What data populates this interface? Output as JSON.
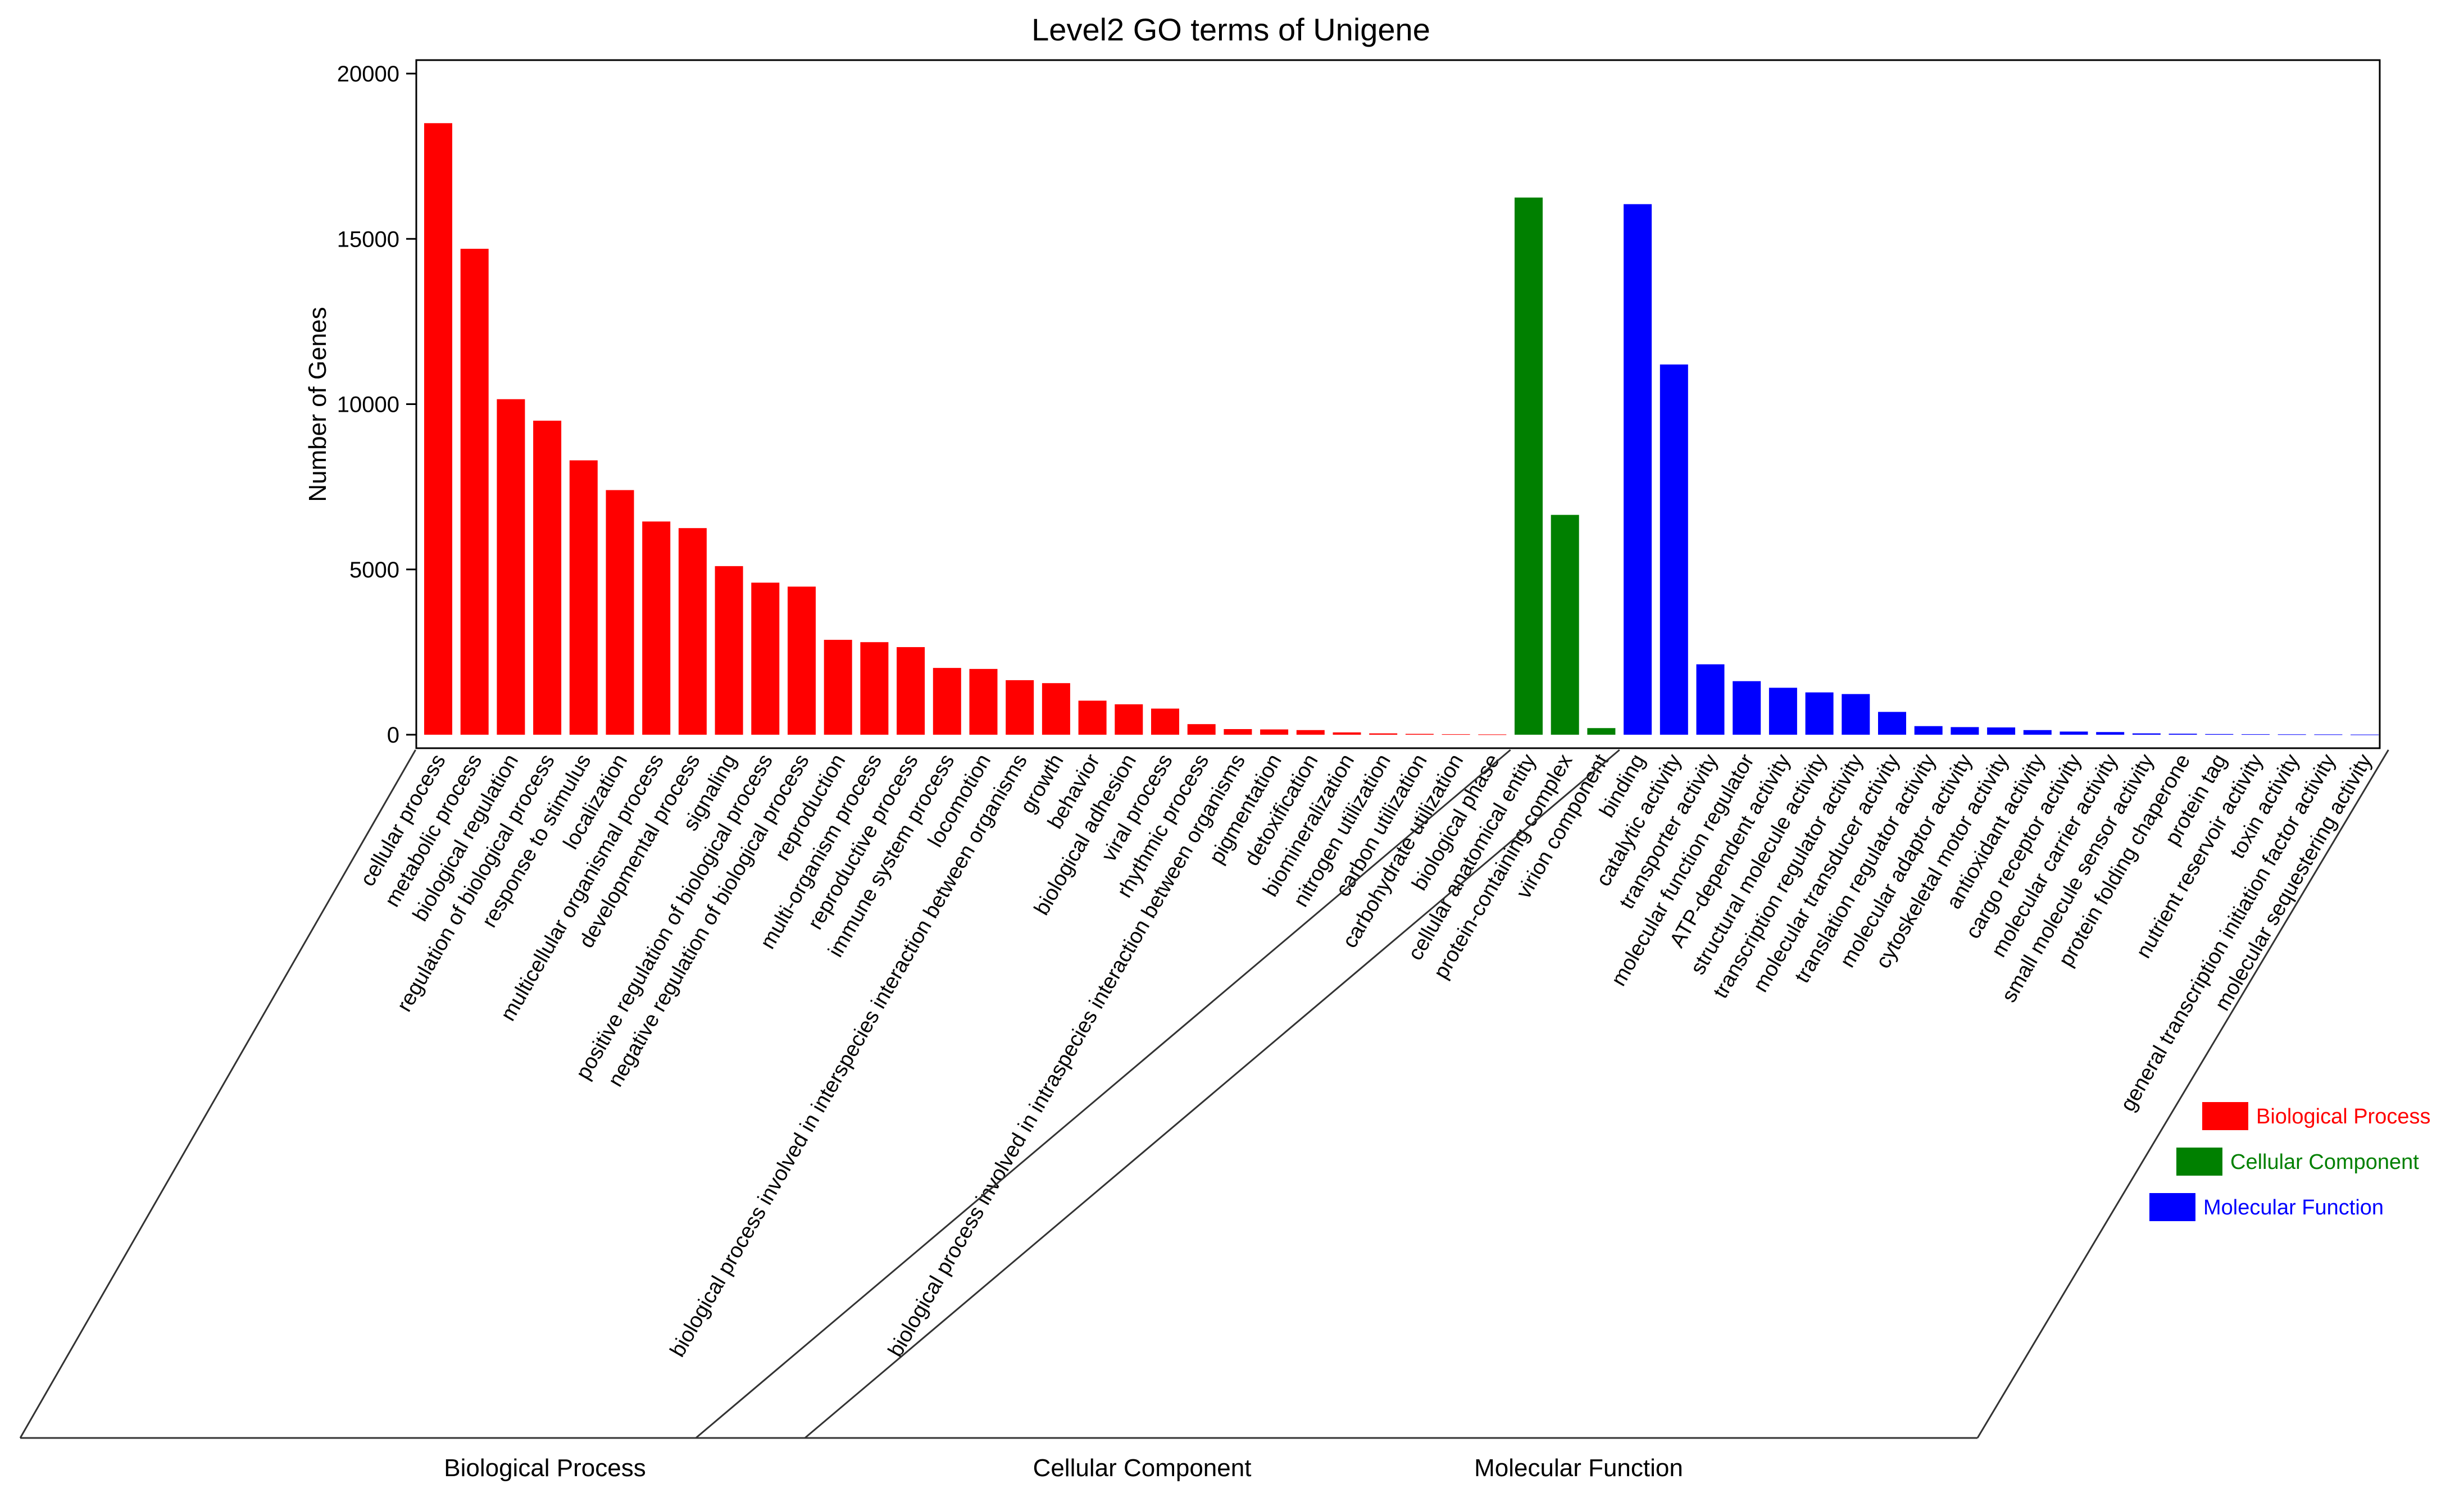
{
  "chart_data": {
    "type": "bar",
    "title": "Level2 GO terms of Unigene",
    "ylabel": "Number of Genes",
    "ylim": [
      0,
      20000
    ],
    "yticks": [
      0,
      5000,
      10000,
      15000,
      20000
    ],
    "grid": false,
    "legend_position": "right",
    "colors": {
      "Biological Process": "#ff0000",
      "Cellular Component": "#008000",
      "Molecular Function": "#0000ff"
    },
    "groups": [
      {
        "name": "Biological Process",
        "categories": [
          "cellular process",
          "metabolic process",
          "biological regulation",
          "regulation of biological process",
          "response to stimulus",
          "localization",
          "multicellular organismal process",
          "developmental process",
          "signaling",
          "positive regulation of biological process",
          "negative regulation of biological process",
          "reproduction",
          "multi-organism process",
          "reproductive process",
          "immune system process",
          "locomotion",
          "biological process involved in interspecies interaction between organisms",
          "growth",
          "behavior",
          "biological adhesion",
          "viral process",
          "rhythmic process",
          "biological process involved in intraspecies interaction between organisms",
          "pigmentation",
          "detoxification",
          "biomineralization",
          "nitrogen utilization",
          "carbon utilization",
          "carbohydrate utilization",
          "biological phase"
        ],
        "values": [
          18500,
          14700,
          10150,
          9500,
          8300,
          7400,
          6450,
          6250,
          5100,
          4600,
          4480,
          2870,
          2800,
          2650,
          2020,
          1990,
          1650,
          1560,
          1030,
          920,
          790,
          320,
          170,
          160,
          140,
          70,
          40,
          25,
          15,
          10
        ]
      },
      {
        "name": "Cellular Component",
        "categories": [
          "cellular anatomical entity",
          "protein-containing complex",
          "virion component"
        ],
        "values": [
          16250,
          6650,
          200
        ]
      },
      {
        "name": "Molecular Function",
        "categories": [
          "binding",
          "catalytic activity",
          "transporter activity",
          "molecular function regulator",
          "ATP-dependent activity",
          "structural molecule activity",
          "transcription regulator activity",
          "molecular transducer activity",
          "translation regulator activity",
          "molecular adaptor activity",
          "cytoskeletal motor activity",
          "antioxidant activity",
          "cargo receptor activity",
          "molecular carrier activity",
          "small molecule sensor activity",
          "protein folding chaperone",
          "protein tag",
          "nutrient reservoir activity",
          "toxin activity",
          "general transcription initiation factor activity",
          "molecular sequestering activity"
        ],
        "values": [
          16050,
          11200,
          2130,
          1620,
          1420,
          1280,
          1230,
          690,
          260,
          230,
          220,
          140,
          95,
          80,
          40,
          30,
          20,
          15,
          12,
          10,
          5
        ]
      }
    ]
  }
}
